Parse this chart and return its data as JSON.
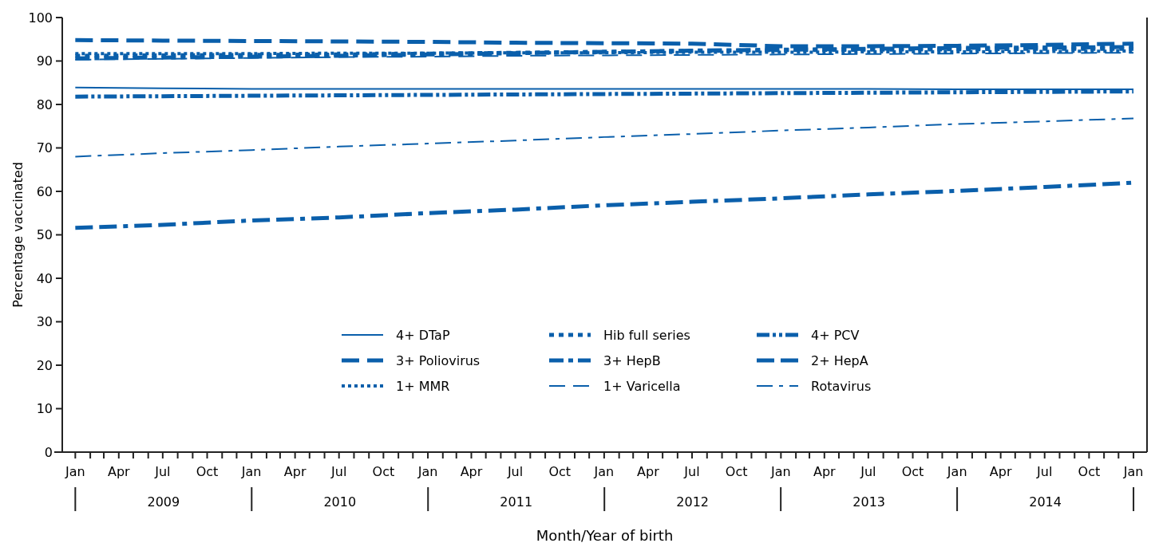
{
  "chart_data": {
    "type": "line",
    "ylabel": "Percentage vaccinated",
    "xlabel": "Month/Year of birth",
    "x": [
      "2009-01",
      "2009-07",
      "2010-01",
      "2010-07",
      "2011-01",
      "2011-07",
      "2012-01",
      "2012-07",
      "2013-01",
      "2013-07",
      "2014-01",
      "2014-07",
      "2015-01"
    ],
    "xlim": [
      "2008-12-05",
      "2015-01-29"
    ],
    "xticks": [
      {
        "value": "2009-01",
        "label": "Jan"
      },
      {
        "value": "2009-02",
        "label": null
      },
      {
        "value": "2009-03",
        "label": null
      },
      {
        "value": "2009-04",
        "label": "Apr"
      },
      {
        "value": "2009-05",
        "label": null
      },
      {
        "value": "2009-06",
        "label": null
      },
      {
        "value": "2009-07",
        "label": "Jul"
      },
      {
        "value": "2009-08",
        "label": null
      },
      {
        "value": "2009-09",
        "label": null
      },
      {
        "value": "2009-10",
        "label": "Oct"
      },
      {
        "value": "2009-11",
        "label": null
      },
      {
        "value": "2009-12",
        "label": null
      },
      {
        "value": "2010-01",
        "label": "Jan"
      },
      {
        "value": "2010-02",
        "label": null
      },
      {
        "value": "2010-03",
        "label": null
      },
      {
        "value": "2010-04",
        "label": "Apr"
      },
      {
        "value": "2010-05",
        "label": null
      },
      {
        "value": "2010-06",
        "label": null
      },
      {
        "value": "2010-07",
        "label": "Jul"
      },
      {
        "value": "2010-08",
        "label": null
      },
      {
        "value": "2010-09",
        "label": null
      },
      {
        "value": "2010-10",
        "label": "Oct"
      },
      {
        "value": "2010-11",
        "label": null
      },
      {
        "value": "2010-12",
        "label": null
      },
      {
        "value": "2011-01",
        "label": "Jan"
      },
      {
        "value": "2011-02",
        "label": null
      },
      {
        "value": "2011-03",
        "label": null
      },
      {
        "value": "2011-04",
        "label": "Apr"
      },
      {
        "value": "2011-05",
        "label": null
      },
      {
        "value": "2011-06",
        "label": null
      },
      {
        "value": "2011-07",
        "label": "Jul"
      },
      {
        "value": "2011-08",
        "label": null
      },
      {
        "value": "2011-09",
        "label": null
      },
      {
        "value": "2011-10",
        "label": "Oct"
      },
      {
        "value": "2011-11",
        "label": null
      },
      {
        "value": "2011-12",
        "label": null
      },
      {
        "value": "2012-01",
        "label": "Jan"
      },
      {
        "value": "2012-02",
        "label": null
      },
      {
        "value": "2012-03",
        "label": null
      },
      {
        "value": "2012-04",
        "label": "Apr"
      },
      {
        "value": "2012-05",
        "label": null
      },
      {
        "value": "2012-06",
        "label": null
      },
      {
        "value": "2012-07",
        "label": "Jul"
      },
      {
        "value": "2012-08",
        "label": null
      },
      {
        "value": "2012-09",
        "label": null
      },
      {
        "value": "2012-10",
        "label": "Oct"
      },
      {
        "value": "2012-11",
        "label": null
      },
      {
        "value": "2012-12",
        "label": null
      },
      {
        "value": "2013-01",
        "label": "Jan"
      },
      {
        "value": "2013-02",
        "label": null
      },
      {
        "value": "2013-03",
        "label": null
      },
      {
        "value": "2013-04",
        "label": "Apr"
      },
      {
        "value": "2013-05",
        "label": null
      },
      {
        "value": "2013-06",
        "label": null
      },
      {
        "value": "2013-07",
        "label": "Jul"
      },
      {
        "value": "2013-08",
        "label": null
      },
      {
        "value": "2013-09",
        "label": null
      },
      {
        "value": "2013-10",
        "label": "Oct"
      },
      {
        "value": "2013-11",
        "label": null
      },
      {
        "value": "2013-12",
        "label": null
      },
      {
        "value": "2014-01",
        "label": "Jan"
      },
      {
        "value": "2014-02",
        "label": null
      },
      {
        "value": "2014-03",
        "label": null
      },
      {
        "value": "2014-04",
        "label": "Apr"
      },
      {
        "value": "2014-05",
        "label": null
      },
      {
        "value": "2014-06",
        "label": null
      },
      {
        "value": "2014-07",
        "label": "Jul"
      },
      {
        "value": "2014-08",
        "label": null
      },
      {
        "value": "2014-09",
        "label": null
      },
      {
        "value": "2014-10",
        "label": "Oct"
      },
      {
        "value": "2014-11",
        "label": null
      },
      {
        "value": "2014-12",
        "label": null
      },
      {
        "value": "2015-01",
        "label": "Jan"
      }
    ],
    "ylim": [
      0,
      100
    ],
    "yticks": [
      0,
      10,
      20,
      30,
      40,
      50,
      60,
      70,
      80,
      90,
      100
    ],
    "grid": false,
    "legend": "bottom",
    "marker": "none",
    "annotations": [
      "2009",
      "2010",
      "2011",
      "2012",
      "2013",
      "2014"
    ],
    "series": [
      {
        "name": "4+ DTaP",
        "color": "#0a5fab",
        "line_style": "solid",
        "values": [
          83.9,
          83.7,
          83.6,
          83.6,
          83.6,
          83.6,
          83.6,
          83.6,
          83.6,
          83.6,
          83.5,
          83.5,
          83.5
        ]
      },
      {
        "name": "Hib full series",
        "color": "#0a5fab",
        "line_style": "shortdash",
        "values": [
          91.2,
          91.3,
          91.4,
          91.5,
          91.7,
          91.9,
          92.1,
          92.3,
          92.5,
          92.6,
          92.7,
          92.8,
          92.8
        ]
      },
      {
        "name": "4+ PCV",
        "color": "#0a5fab",
        "line_style": "dashdotdot",
        "values": [
          81.8,
          81.9,
          82.0,
          82.1,
          82.2,
          82.3,
          82.4,
          82.5,
          82.6,
          82.7,
          82.8,
          82.9,
          83.0
        ]
      },
      {
        "name": "3+ Poliovirus",
        "color": "#0a5fab",
        "line_style": "dashed",
        "values": [
          94.8,
          94.7,
          94.6,
          94.5,
          94.4,
          94.2,
          94.1,
          94.0,
          93.4,
          93.4,
          93.5,
          93.7,
          94.0
        ]
      },
      {
        "name": "3+ HepB",
        "color": "#0a5fab",
        "line_style": "dashdot",
        "values": [
          90.6,
          90.8,
          91.0,
          91.2,
          91.5,
          91.8,
          92.1,
          92.4,
          92.6,
          92.8,
          93.0,
          93.1,
          93.2
        ]
      },
      {
        "name": "2+ HepA",
        "color": "#0a5fab",
        "line_style": "dashdashdot",
        "values": [
          51.6,
          52.3,
          53.3,
          54.0,
          55.0,
          55.8,
          56.8,
          57.6,
          58.4,
          59.3,
          60.1,
          61.0,
          62.0
        ]
      },
      {
        "name": "1+ MMR",
        "color": "#0a5fab",
        "line_style": "dotted",
        "values": [
          91.7,
          91.7,
          91.7,
          91.8,
          91.8,
          91.9,
          91.9,
          92.0,
          92.0,
          92.1,
          92.1,
          92.2,
          92.3
        ]
      },
      {
        "name": "1+ Varicella",
        "color": "#0a5fab",
        "line_style": "longdash",
        "values": [
          90.3,
          90.5,
          90.7,
          90.9,
          91.0,
          91.2,
          91.3,
          91.4,
          91.5,
          91.6,
          91.7,
          91.8,
          91.9
        ]
      },
      {
        "name": "Rotavirus",
        "color": "#0a5fab",
        "line_style": "longdashdot",
        "values": [
          68.0,
          68.8,
          69.5,
          70.3,
          71.0,
          71.7,
          72.5,
          73.2,
          74.0,
          74.7,
          75.5,
          76.1,
          76.8
        ]
      }
    ]
  }
}
